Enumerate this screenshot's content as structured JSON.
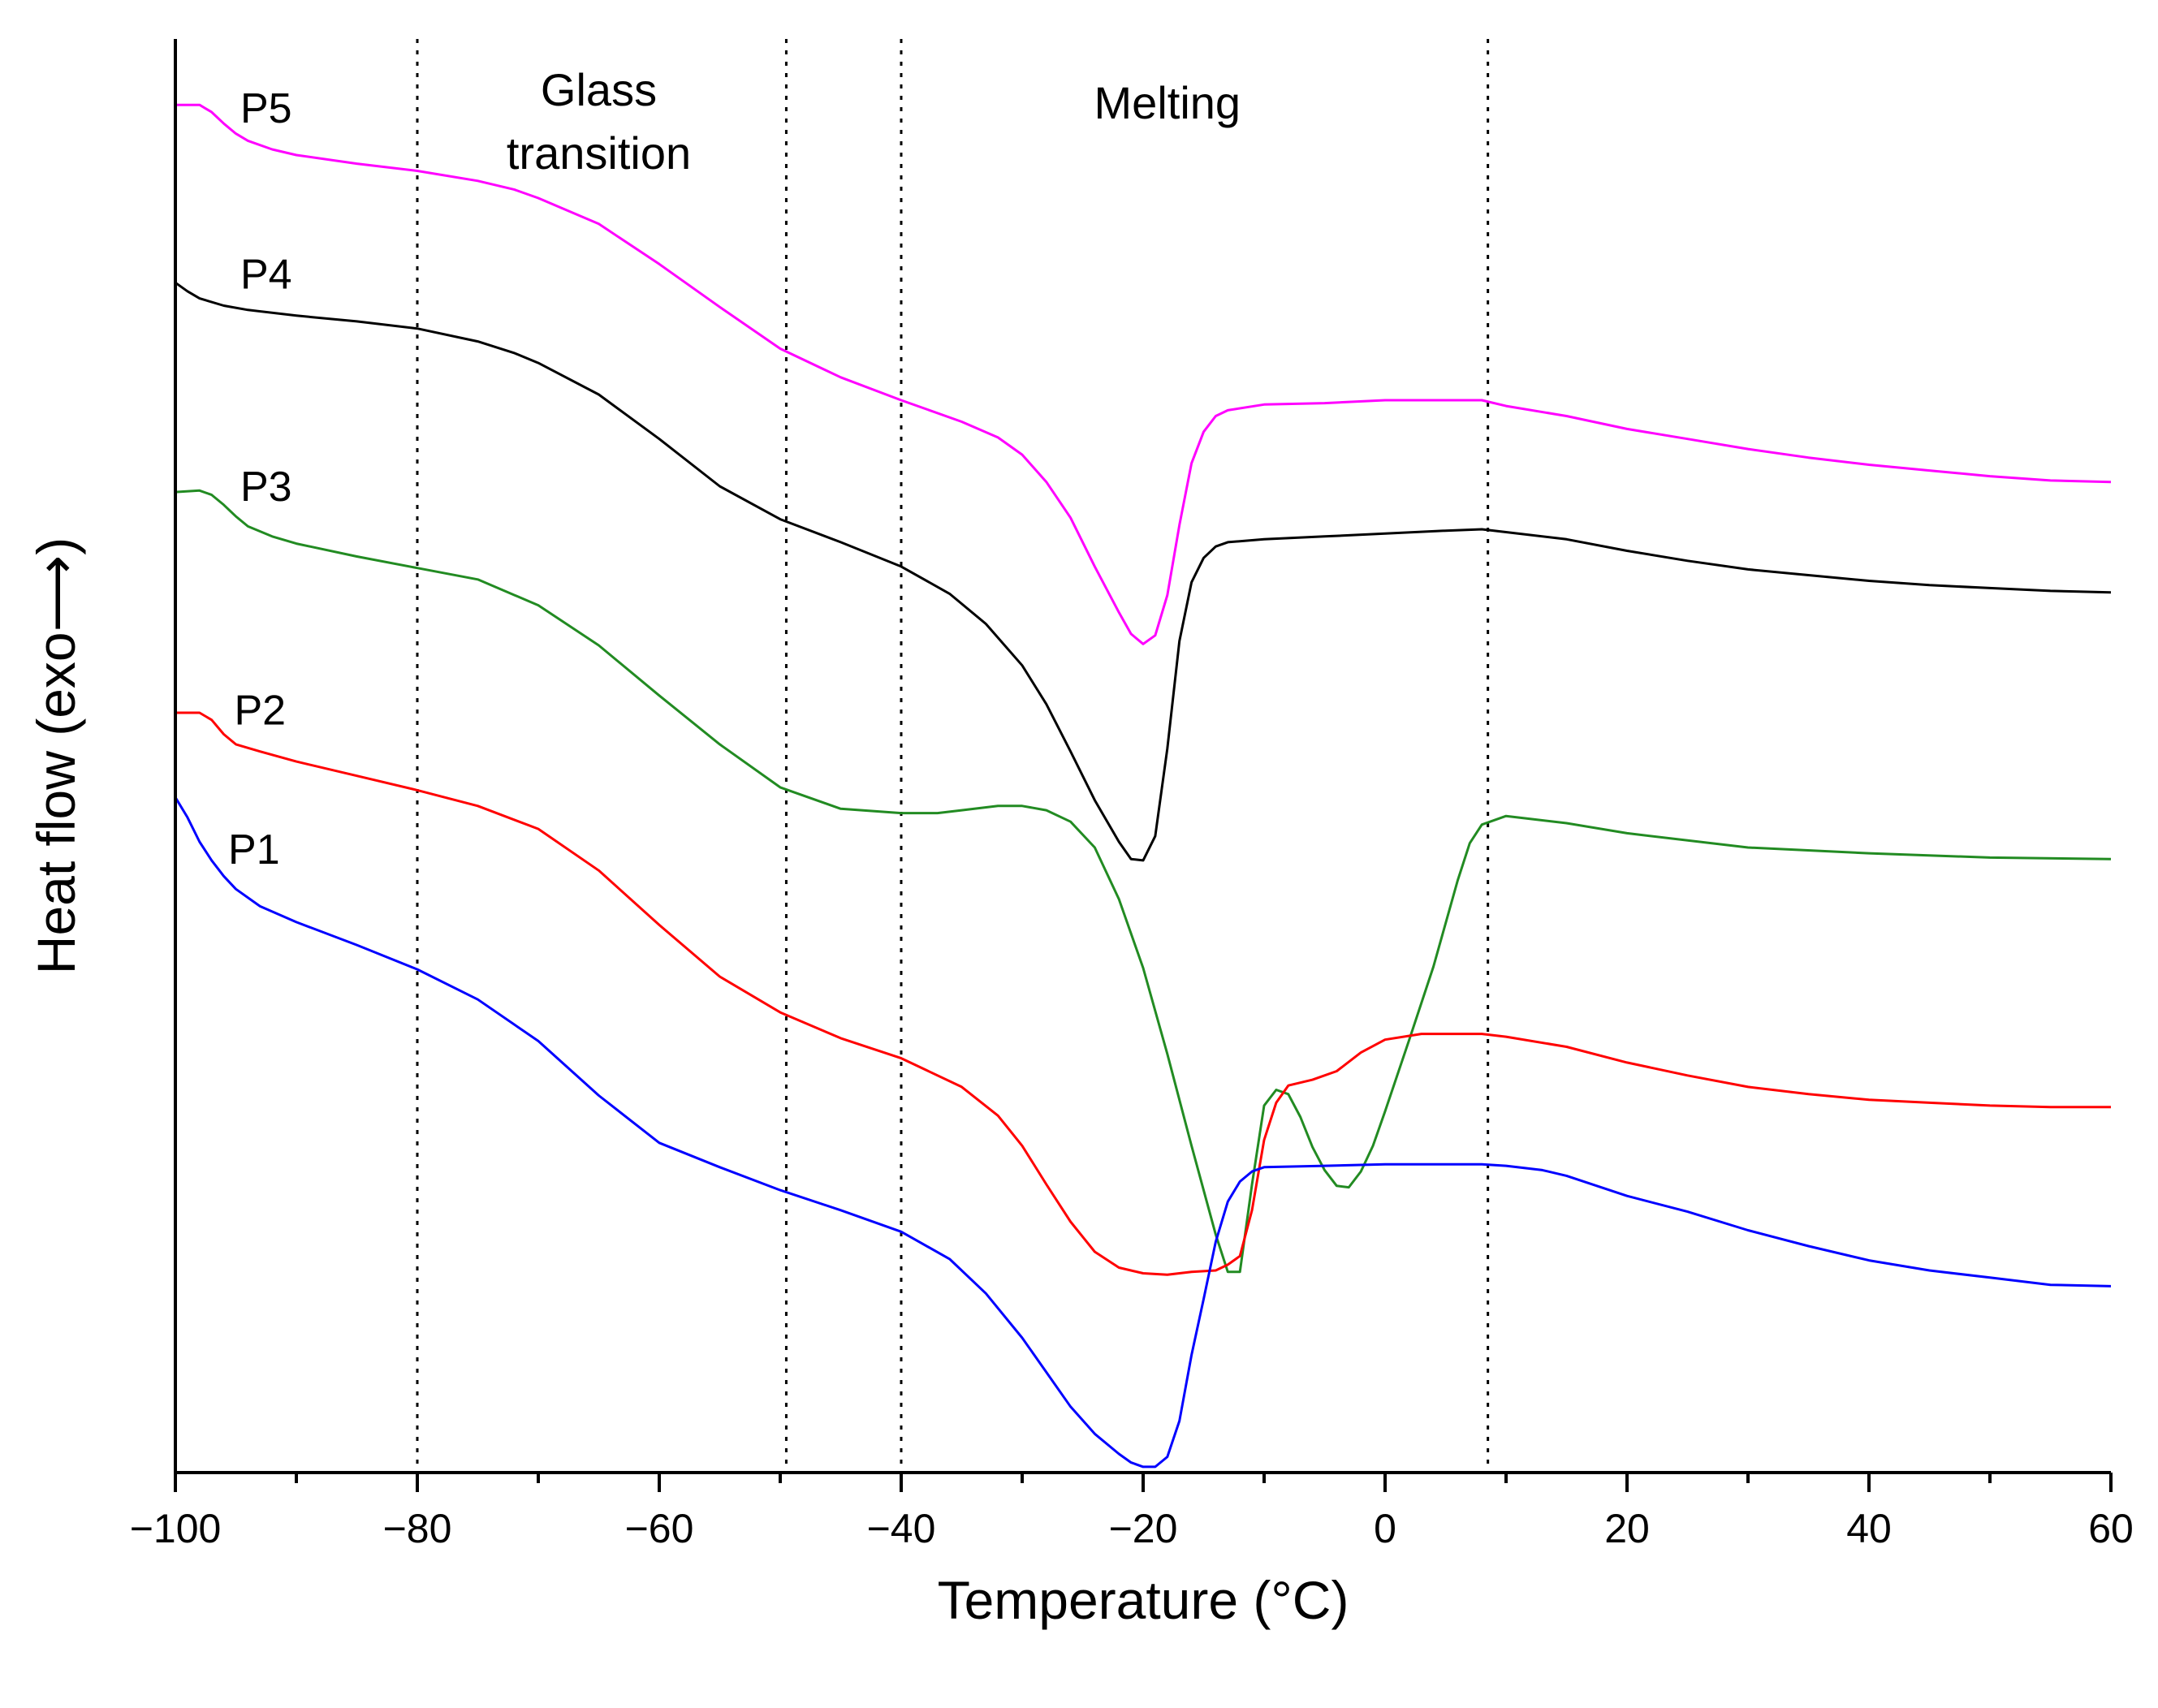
{
  "chart_data": {
    "type": "line",
    "title": "",
    "xlabel": "Temperature (°C)",
    "ylabel": "Heat flow (exo⟶)",
    "xlim": [
      -100,
      60
    ],
    "ylim": [
      0,
      100
    ],
    "xticks": [
      -100,
      -80,
      -60,
      -40,
      -20,
      0,
      20,
      40,
      60
    ],
    "xtick_labels": [
      "−100",
      "−80",
      "−60",
      "−40",
      "−20",
      "0",
      "20",
      "40",
      "60"
    ],
    "y_tick_labels_shown": false,
    "grid": false,
    "legend": "none",
    "reference_lines_x": [
      -80,
      -49.5,
      -40,
      8.5
    ],
    "annotations": [
      {
        "id": "glass",
        "lines": [
          "Glass",
          "transition"
        ],
        "x": -65
      },
      {
        "id": "melting",
        "lines": [
          "Melting"
        ],
        "x": -18
      }
    ],
    "series": [
      {
        "name": "P5",
        "color": "#ff00ff",
        "points": [
          [
            -100,
            95.4
          ],
          [
            -99,
            95.4
          ],
          [
            -98,
            95.4
          ],
          [
            -97,
            94.9
          ],
          [
            -96,
            94.1
          ],
          [
            -95,
            93.4
          ],
          [
            -94,
            92.9
          ],
          [
            -92,
            92.3
          ],
          [
            -90,
            91.9
          ],
          [
            -85,
            91.3
          ],
          [
            -80,
            90.8
          ],
          [
            -75,
            90.1
          ],
          [
            -72,
            89.5
          ],
          [
            -70,
            88.9
          ],
          [
            -65,
            87.1
          ],
          [
            -60,
            84.3
          ],
          [
            -55,
            81.3
          ],
          [
            -50,
            78.4
          ],
          [
            -45,
            76.4
          ],
          [
            -40,
            74.8
          ],
          [
            -35,
            73.3
          ],
          [
            -32,
            72.2
          ],
          [
            -30,
            71.0
          ],
          [
            -28,
            69.1
          ],
          [
            -26,
            66.6
          ],
          [
            -24,
            63.2
          ],
          [
            -22,
            60.0
          ],
          [
            -21,
            58.5
          ],
          [
            -20,
            57.8
          ],
          [
            -19,
            58.4
          ],
          [
            -18,
            61.2
          ],
          [
            -17,
            66.1
          ],
          [
            -16,
            70.4
          ],
          [
            -15,
            72.6
          ],
          [
            -14,
            73.7
          ],
          [
            -13,
            74.1
          ],
          [
            -10,
            74.5
          ],
          [
            -5,
            74.6
          ],
          [
            0,
            74.8
          ],
          [
            5,
            74.8
          ],
          [
            8,
            74.8
          ],
          [
            10,
            74.4
          ],
          [
            15,
            73.7
          ],
          [
            20,
            72.8
          ],
          [
            25,
            72.1
          ],
          [
            30,
            71.4
          ],
          [
            35,
            70.8
          ],
          [
            40,
            70.3
          ],
          [
            45,
            69.9
          ],
          [
            50,
            69.5
          ],
          [
            55,
            69.2
          ],
          [
            60,
            69.1
          ]
        ]
      },
      {
        "name": "P4",
        "color": "#000000",
        "points": [
          [
            -100,
            83.0
          ],
          [
            -99,
            82.4
          ],
          [
            -98,
            81.9
          ],
          [
            -96,
            81.4
          ],
          [
            -94,
            81.1
          ],
          [
            -90,
            80.7
          ],
          [
            -85,
            80.3
          ],
          [
            -80,
            79.8
          ],
          [
            -75,
            78.9
          ],
          [
            -72,
            78.1
          ],
          [
            -70,
            77.4
          ],
          [
            -65,
            75.2
          ],
          [
            -60,
            72.1
          ],
          [
            -55,
            68.8
          ],
          [
            -50,
            66.5
          ],
          [
            -45,
            64.9
          ],
          [
            -40,
            63.2
          ],
          [
            -36,
            61.3
          ],
          [
            -33,
            59.2
          ],
          [
            -30,
            56.3
          ],
          [
            -28,
            53.6
          ],
          [
            -26,
            50.3
          ],
          [
            -24,
            46.9
          ],
          [
            -22,
            44.0
          ],
          [
            -21,
            42.8
          ],
          [
            -20,
            42.7
          ],
          [
            -19,
            44.4
          ],
          [
            -18,
            50.5
          ],
          [
            -17,
            58.0
          ],
          [
            -16,
            62.1
          ],
          [
            -15,
            63.8
          ],
          [
            -14,
            64.6
          ],
          [
            -13,
            64.9
          ],
          [
            -10,
            65.1
          ],
          [
            -5,
            65.3
          ],
          [
            0,
            65.5
          ],
          [
            5,
            65.7
          ],
          [
            8,
            65.8
          ],
          [
            10,
            65.6
          ],
          [
            15,
            65.1
          ],
          [
            20,
            64.3
          ],
          [
            25,
            63.6
          ],
          [
            30,
            63.0
          ],
          [
            35,
            62.6
          ],
          [
            40,
            62.2
          ],
          [
            45,
            61.9
          ],
          [
            50,
            61.7
          ],
          [
            55,
            61.5
          ],
          [
            60,
            61.4
          ]
        ]
      },
      {
        "name": "P3",
        "color": "#228b22",
        "points": [
          [
            -100,
            68.4
          ],
          [
            -98,
            68.5
          ],
          [
            -97,
            68.2
          ],
          [
            -96,
            67.5
          ],
          [
            -95,
            66.7
          ],
          [
            -94,
            66.0
          ],
          [
            -92,
            65.3
          ],
          [
            -90,
            64.8
          ],
          [
            -85,
            63.9
          ],
          [
            -80,
            63.1
          ],
          [
            -75,
            62.3
          ],
          [
            -70,
            60.5
          ],
          [
            -65,
            57.7
          ],
          [
            -60,
            54.2
          ],
          [
            -55,
            50.8
          ],
          [
            -50,
            47.8
          ],
          [
            -45,
            46.3
          ],
          [
            -40,
            46.0
          ],
          [
            -37,
            46.0
          ],
          [
            -35,
            46.2
          ],
          [
            -32,
            46.5
          ],
          [
            -30,
            46.5
          ],
          [
            -28,
            46.2
          ],
          [
            -26,
            45.4
          ],
          [
            -24,
            43.6
          ],
          [
            -22,
            40.0
          ],
          [
            -20,
            35.2
          ],
          [
            -18,
            29.2
          ],
          [
            -16,
            22.8
          ],
          [
            -14,
            16.6
          ],
          [
            -13,
            14.0
          ],
          [
            -12,
            14.0
          ],
          [
            -11,
            20.1
          ],
          [
            -10,
            25.6
          ],
          [
            -9,
            26.7
          ],
          [
            -8,
            26.4
          ],
          [
            -7,
            24.8
          ],
          [
            -6,
            22.7
          ],
          [
            -5,
            21.1
          ],
          [
            -4,
            20.0
          ],
          [
            -3,
            19.9
          ],
          [
            -2,
            21.0
          ],
          [
            -1,
            22.8
          ],
          [
            0,
            25.2
          ],
          [
            2,
            30.2
          ],
          [
            4,
            35.3
          ],
          [
            6,
            41.3
          ],
          [
            7,
            43.9
          ],
          [
            8,
            45.2
          ],
          [
            10,
            45.8
          ],
          [
            12,
            45.6
          ],
          [
            15,
            45.3
          ],
          [
            20,
            44.6
          ],
          [
            30,
            43.6
          ],
          [
            40,
            43.2
          ],
          [
            50,
            42.9
          ],
          [
            60,
            42.8
          ]
        ]
      },
      {
        "name": "P2",
        "color": "#ff0000",
        "points": [
          [
            -100,
            53.0
          ],
          [
            -98,
            53.0
          ],
          [
            -97,
            52.5
          ],
          [
            -96,
            51.5
          ],
          [
            -95,
            50.8
          ],
          [
            -93,
            50.3
          ],
          [
            -90,
            49.6
          ],
          [
            -85,
            48.6
          ],
          [
            -80,
            47.6
          ],
          [
            -75,
            46.5
          ],
          [
            -70,
            44.9
          ],
          [
            -65,
            42.0
          ],
          [
            -60,
            38.2
          ],
          [
            -55,
            34.6
          ],
          [
            -50,
            32.1
          ],
          [
            -45,
            30.3
          ],
          [
            -40,
            28.9
          ],
          [
            -35,
            26.9
          ],
          [
            -32,
            24.9
          ],
          [
            -30,
            22.8
          ],
          [
            -28,
            20.1
          ],
          [
            -26,
            17.5
          ],
          [
            -24,
            15.4
          ],
          [
            -22,
            14.3
          ],
          [
            -20,
            13.9
          ],
          [
            -18,
            13.8
          ],
          [
            -16,
            14.0
          ],
          [
            -14,
            14.1
          ],
          [
            -13,
            14.5
          ],
          [
            -12,
            15.1
          ],
          [
            -11,
            18.3
          ],
          [
            -10,
            23.2
          ],
          [
            -9,
            25.8
          ],
          [
            -8,
            27.0
          ],
          [
            -6,
            27.4
          ],
          [
            -4,
            28.0
          ],
          [
            -2,
            29.3
          ],
          [
            0,
            30.2
          ],
          [
            3,
            30.6
          ],
          [
            8,
            30.6
          ],
          [
            10,
            30.4
          ],
          [
            15,
            29.7
          ],
          [
            20,
            28.6
          ],
          [
            25,
            27.7
          ],
          [
            30,
            26.9
          ],
          [
            35,
            26.4
          ],
          [
            40,
            26.0
          ],
          [
            45,
            25.8
          ],
          [
            50,
            25.6
          ],
          [
            55,
            25.5
          ],
          [
            60,
            25.5
          ]
        ]
      },
      {
        "name": "P1",
        "color": "#0000ff",
        "points": [
          [
            -100,
            47.1
          ],
          [
            -99,
            45.7
          ],
          [
            -98,
            44.0
          ],
          [
            -97,
            42.7
          ],
          [
            -96,
            41.6
          ],
          [
            -95,
            40.7
          ],
          [
            -93,
            39.5
          ],
          [
            -90,
            38.4
          ],
          [
            -85,
            36.8
          ],
          [
            -80,
            35.1
          ],
          [
            -75,
            33.0
          ],
          [
            -70,
            30.1
          ],
          [
            -65,
            26.3
          ],
          [
            -60,
            23.0
          ],
          [
            -55,
            21.3
          ],
          [
            -50,
            19.7
          ],
          [
            -45,
            18.3
          ],
          [
            -40,
            16.8
          ],
          [
            -36,
            14.9
          ],
          [
            -33,
            12.5
          ],
          [
            -30,
            9.4
          ],
          [
            -28,
            7.0
          ],
          [
            -26,
            4.6
          ],
          [
            -24,
            2.7
          ],
          [
            -22,
            1.3
          ],
          [
            -21,
            0.7
          ],
          [
            -20,
            0.4
          ],
          [
            -19,
            0.4
          ],
          [
            -18,
            1.1
          ],
          [
            -17,
            3.6
          ],
          [
            -16,
            8.2
          ],
          [
            -15,
            12.1
          ],
          [
            -14,
            16.1
          ],
          [
            -13,
            18.9
          ],
          [
            -12,
            20.3
          ],
          [
            -11,
            21.0
          ],
          [
            -10,
            21.3
          ],
          [
            -5,
            21.4
          ],
          [
            0,
            21.5
          ],
          [
            5,
            21.5
          ],
          [
            8,
            21.5
          ],
          [
            10,
            21.4
          ],
          [
            13,
            21.1
          ],
          [
            15,
            20.7
          ],
          [
            20,
            19.3
          ],
          [
            25,
            18.2
          ],
          [
            30,
            16.9
          ],
          [
            35,
            15.8
          ],
          [
            40,
            14.8
          ],
          [
            45,
            14.1
          ],
          [
            50,
            13.6
          ],
          [
            55,
            13.1
          ],
          [
            60,
            13.0
          ]
        ]
      }
    ],
    "series_labels": [
      {
        "name": "P5",
        "x": -92.5,
        "y": 95.2
      },
      {
        "name": "P4",
        "x": -92.5,
        "y": 83.6
      },
      {
        "name": "P3",
        "x": -92.5,
        "y": 68.8
      },
      {
        "name": "P2",
        "x": -93,
        "y": 53.2
      },
      {
        "name": "P1",
        "x": -93.5,
        "y": 43.5
      }
    ]
  }
}
